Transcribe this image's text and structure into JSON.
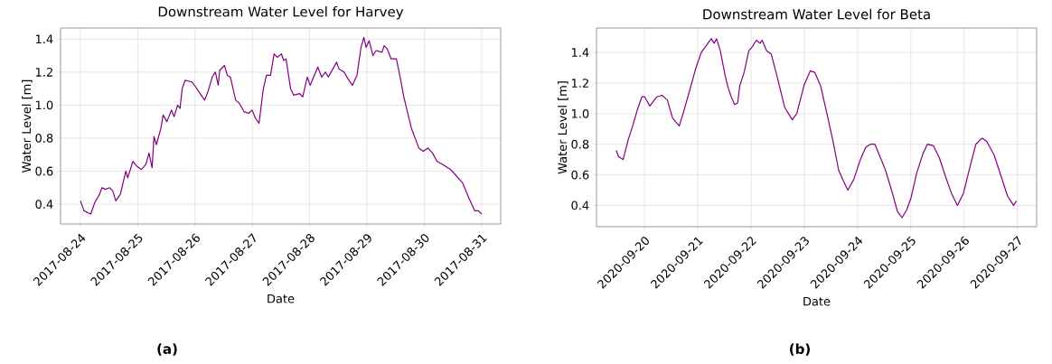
{
  "chart_data": [
    {
      "type": "line",
      "title": "Downstream Water Level for Harvey",
      "xlabel": "Date",
      "ylabel": "Water Level [m]",
      "annotations": [
        "(a)"
      ],
      "grid": true,
      "xlim": [
        "2017-08-23T15:40",
        "2017-08-31T08:00"
      ],
      "ylim": [
        0.28,
        1.467
      ],
      "xticks": [
        "2017-08-24",
        "2017-08-25",
        "2017-08-26",
        "2017-08-27",
        "2017-08-28",
        "2017-08-29",
        "2017-08-30",
        "2017-08-31"
      ],
      "yticks": [
        {
          "value": 0.4,
          "label": "0.4"
        },
        {
          "value": 0.6,
          "label": "0.6"
        },
        {
          "value": 0.8,
          "label": "0.8"
        },
        {
          "value": 1.0,
          "label": "1.0"
        },
        {
          "value": 1.2,
          "label": "1.2"
        },
        {
          "value": 1.4,
          "label": "1.4"
        }
      ],
      "series": [
        {
          "color": "#800080",
          "x": [
            "2017-08-24T00:00",
            "2017-08-24T01:30",
            "2017-08-24T04:18",
            "2017-08-24T06:00",
            "2017-08-24T08:00",
            "2017-08-24T09:00",
            "2017-08-24T10:24",
            "2017-08-24T12:18",
            "2017-08-24T13:30",
            "2017-08-24T14:48",
            "2017-08-24T16:42",
            "2017-08-24T19:00",
            "2017-08-24T19:48",
            "2017-08-24T22:00",
            "2017-08-24T23:36",
            "2017-08-25T01:30",
            "2017-08-25T03:24",
            "2017-08-25T04:42",
            "2017-08-25T06:00",
            "2017-08-25T06:48",
            "2017-08-25T07:48",
            "2017-08-25T09:42",
            "2017-08-25T10:36",
            "2017-08-25T12:12",
            "2017-08-25T14:06",
            "2017-08-25T15:12",
            "2017-08-25T16:42",
            "2017-08-25T17:42",
            "2017-08-25T18:36",
            "2017-08-25T19:48",
            "2017-08-25T22:42",
            "2017-08-26T00:15",
            "2017-08-26T02:06",
            "2017-08-26T04:00",
            "2017-08-26T05:36",
            "2017-08-26T07:12",
            "2017-08-26T08:30",
            "2017-08-26T09:42",
            "2017-08-26T10:18",
            "2017-08-26T12:18",
            "2017-08-26T13:30",
            "2017-08-26T14:48",
            "2017-08-26T17:00",
            "2017-08-26T18:36",
            "2017-08-26T20:30",
            "2017-08-26T22:24",
            "2017-08-26T23:54",
            "2017-08-27T01:18",
            "2017-08-27T02:48",
            "2017-08-27T04:36",
            "2017-08-27T05:54",
            "2017-08-27T07:36",
            "2017-08-27T09:06",
            "2017-08-27T10:24",
            "2017-08-27T12:12",
            "2017-08-27T13:06",
            "2017-08-27T14:06",
            "2017-08-27T16:00",
            "2017-08-27T17:18",
            "2017-08-27T19:48",
            "2017-08-27T21:06",
            "2017-08-27T23:00",
            "2017-08-28T00:12",
            "2017-08-28T03:24",
            "2017-08-28T05:00",
            "2017-08-28T06:36",
            "2017-08-28T07:48",
            "2017-08-28T11:18",
            "2017-08-28T12:12",
            "2017-08-28T14:24",
            "2017-08-28T16:00",
            "2017-08-28T17:54",
            "2017-08-28T19:48",
            "2017-08-28T21:30",
            "2017-08-28T22:42",
            "2017-08-28T23:36",
            "2017-08-29T00:54",
            "2017-08-29T02:30",
            "2017-08-29T03:48",
            "2017-08-29T06:18",
            "2017-08-29T07:12",
            "2017-08-29T08:30",
            "2017-08-29T10:06",
            "2017-08-29T12:18",
            "2017-08-29T13:54",
            "2017-08-29T15:24",
            "2017-08-29T18:36",
            "2017-08-29T21:42",
            "2017-08-29T23:36",
            "2017-08-30T01:30",
            "2017-08-30T03:24",
            "2017-08-30T05:18",
            "2017-08-30T07:48",
            "2017-08-30T11:00",
            "2017-08-30T13:30",
            "2017-08-30T16:00",
            "2017-08-30T18:36",
            "2017-08-30T21:06",
            "2017-08-30T22:42",
            "2017-08-31T00:00"
          ],
          "values": [
            0.42,
            0.36,
            0.34,
            0.41,
            0.46,
            0.5,
            0.49,
            0.5,
            0.48,
            0.42,
            0.46,
            0.6,
            0.56,
            0.66,
            0.63,
            0.61,
            0.64,
            0.71,
            0.62,
            0.81,
            0.76,
            0.86,
            0.94,
            0.9,
            0.97,
            0.93,
            1.0,
            0.98,
            1.1,
            1.15,
            1.14,
            1.11,
            1.07,
            1.03,
            1.09,
            1.17,
            1.2,
            1.12,
            1.21,
            1.24,
            1.18,
            1.17,
            1.03,
            1.01,
            0.96,
            0.95,
            0.97,
            0.92,
            0.89,
            1.1,
            1.18,
            1.18,
            1.31,
            1.29,
            1.31,
            1.27,
            1.28,
            1.1,
            1.06,
            1.07,
            1.05,
            1.17,
            1.12,
            1.23,
            1.17,
            1.2,
            1.17,
            1.26,
            1.22,
            1.2,
            1.16,
            1.12,
            1.18,
            1.35,
            1.41,
            1.35,
            1.39,
            1.3,
            1.33,
            1.32,
            1.36,
            1.34,
            1.28,
            1.28,
            1.17,
            1.05,
            0.86,
            0.74,
            0.72,
            0.74,
            0.71,
            0.66,
            0.64,
            0.61,
            0.57,
            0.53,
            0.44,
            0.36,
            0.36,
            0.34
          ]
        }
      ]
    },
    {
      "type": "line",
      "title": "Downstream Water Level for Beta",
      "xlabel": "Date",
      "ylabel": "Water Level [m]",
      "annotations": [
        "(b)"
      ],
      "grid": true,
      "xlim": [
        "2020-09-19T02:24",
        "2020-09-27T08:40"
      ],
      "ylim": [
        0.261,
        1.56
      ],
      "xticks": [
        "2020-09-20",
        "2020-09-21",
        "2020-09-22",
        "2020-09-23",
        "2020-09-24",
        "2020-09-25",
        "2020-09-26",
        "2020-09-27"
      ],
      "yticks": [
        {
          "value": 0.4,
          "label": "0.4"
        },
        {
          "value": 0.6,
          "label": "0.6"
        },
        {
          "value": 0.8,
          "label": "0.8"
        },
        {
          "value": 1.0,
          "label": "1.0"
        },
        {
          "value": 1.2,
          "label": "1.2"
        },
        {
          "value": 1.4,
          "label": "1.4"
        }
      ],
      "series": [
        {
          "color": "#800080",
          "x": [
            "2020-09-19T11:18",
            "2020-09-19T12:18",
            "2020-09-19T14:24",
            "2020-09-19T16:42",
            "2020-09-19T18:42",
            "2020-09-19T20:42",
            "2020-09-19T22:48",
            "2020-09-20T00:06",
            "2020-09-20T02:24",
            "2020-09-20T05:36",
            "2020-09-20T07:54",
            "2020-09-20T10:18",
            "2020-09-20T12:42",
            "2020-09-20T15:42",
            "2020-09-20T17:48",
            "2020-09-20T21:06",
            "2020-09-20T23:12",
            "2020-09-21T01:36",
            "2020-09-21T04:06",
            "2020-09-21T06:06",
            "2020-09-21T07:24",
            "2020-09-21T08:30",
            "2020-09-21T10:12",
            "2020-09-21T12:12",
            "2020-09-21T13:30",
            "2020-09-21T15:06",
            "2020-09-21T16:36",
            "2020-09-21T18:00",
            "2020-09-21T18:54",
            "2020-09-21T20:54",
            "2020-09-21T23:00",
            "2020-09-22T00:42",
            "2020-09-22T02:24",
            "2020-09-22T04:06",
            "2020-09-22T05:00",
            "2020-09-22T07:06",
            "2020-09-22T09:06",
            "2020-09-22T11:48",
            "2020-09-22T15:12",
            "2020-09-22T18:36",
            "2020-09-22T20:36",
            "2020-09-23T00:00",
            "2020-09-23T02:42",
            "2020-09-23T04:42",
            "2020-09-23T07:24",
            "2020-09-23T10:12",
            "2020-09-23T12:48",
            "2020-09-23T15:30",
            "2020-09-23T17:36",
            "2020-09-23T19:36",
            "2020-09-23T22:18",
            "2020-09-24T01:00",
            "2020-09-24T03:42",
            "2020-09-24T05:48",
            "2020-09-24T07:48",
            "2020-09-24T09:48",
            "2020-09-24T12:36",
            "2020-09-24T15:18",
            "2020-09-24T18:00",
            "2020-09-24T20:00",
            "2020-09-24T22:06",
            "2020-09-25T00:06",
            "2020-09-25T02:36",
            "2020-09-25T05:30",
            "2020-09-25T07:30",
            "2020-09-25T10:12",
            "2020-09-25T12:54",
            "2020-09-25T15:36",
            "2020-09-25T18:18",
            "2020-09-25T21:00",
            "2020-09-25T23:42",
            "2020-09-26T02:36",
            "2020-09-26T05:18",
            "2020-09-26T08:06",
            "2020-09-26T10:06",
            "2020-09-26T13:30",
            "2020-09-26T16:54",
            "2020-09-26T19:36",
            "2020-09-26T22:18",
            "2020-09-26T23:36"
          ],
          "values": [
            0.76,
            0.72,
            0.7,
            0.83,
            0.92,
            1.02,
            1.11,
            1.11,
            1.05,
            1.11,
            1.12,
            1.09,
            0.97,
            0.92,
            1.02,
            1.19,
            1.3,
            1.4,
            1.45,
            1.49,
            1.46,
            1.49,
            1.41,
            1.26,
            1.18,
            1.11,
            1.06,
            1.07,
            1.18,
            1.27,
            1.41,
            1.44,
            1.48,
            1.46,
            1.48,
            1.41,
            1.39,
            1.24,
            1.04,
            0.96,
            1.0,
            1.19,
            1.28,
            1.27,
            1.18,
            1.0,
            0.83,
            0.63,
            0.56,
            0.5,
            0.57,
            0.69,
            0.78,
            0.8,
            0.8,
            0.73,
            0.63,
            0.5,
            0.36,
            0.32,
            0.37,
            0.45,
            0.61,
            0.74,
            0.8,
            0.79,
            0.71,
            0.59,
            0.48,
            0.4,
            0.48,
            0.65,
            0.8,
            0.84,
            0.82,
            0.73,
            0.58,
            0.46,
            0.4,
            0.43
          ]
        }
      ]
    }
  ]
}
